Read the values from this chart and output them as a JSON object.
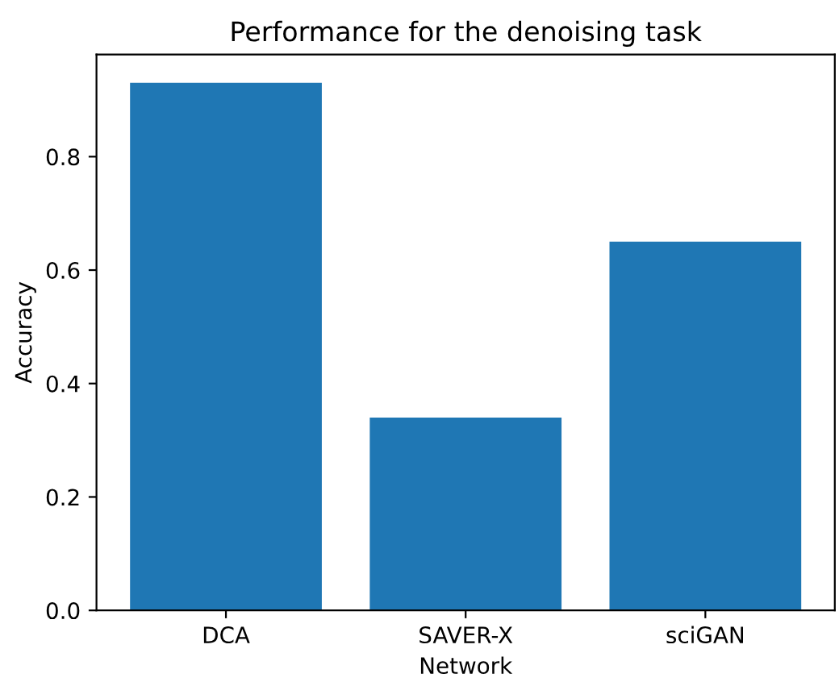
{
  "chart_data": {
    "type": "bar",
    "title": "Performance for the denoising task",
    "xlabel": "Network",
    "ylabel": "Accuracy",
    "categories": [
      "DCA",
      "SAVER-X",
      "sciGAN"
    ],
    "values": [
      0.93,
      0.34,
      0.65
    ],
    "color": "#1f77b4",
    "ylim": [
      0,
      0.98
    ],
    "yticks": [
      {
        "value": 0,
        "label": "0.0"
      },
      0.2,
      0.4,
      0.6,
      0.8
    ],
    "grid": false
  }
}
